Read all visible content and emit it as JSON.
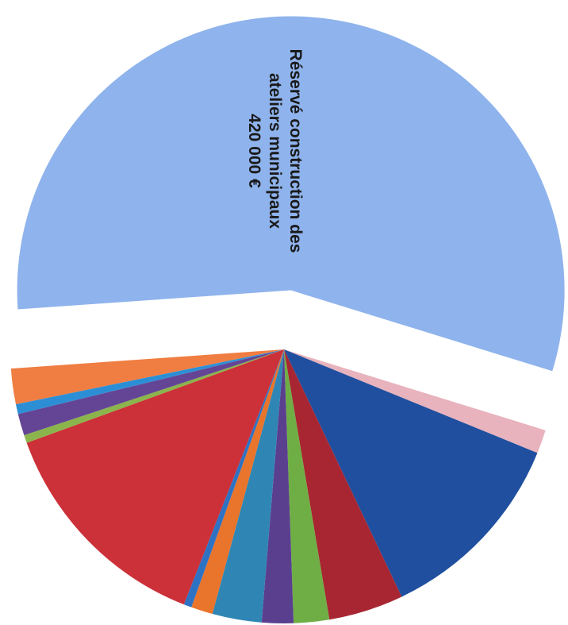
{
  "chart_data": {
    "type": "pie",
    "title": "",
    "slices": [
      {
        "value": 480,
        "color": "#8fb3ec",
        "label_lines": [
          "Réservé construction des",
          "ateliers municipaux",
          "420 000 €"
        ]
      },
      {
        "value": 12,
        "color": "#e8b3bd"
      },
      {
        "value": 101,
        "color": "#1f4f9e"
      },
      {
        "value": 38,
        "color": "#a82632"
      },
      {
        "value": 18,
        "color": "#6fae45"
      },
      {
        "value": 16,
        "color": "#5b3f8f"
      },
      {
        "value": 25,
        "color": "#2f86b4"
      },
      {
        "value": 11,
        "color": "#e9742b"
      },
      {
        "value": 4,
        "color": "#2e72c4"
      },
      {
        "value": 116,
        "color": "#cc3038"
      },
      {
        "value": 4,
        "color": "#8bb44c"
      },
      {
        "value": 11,
        "color": "#644595"
      },
      {
        "value": 5,
        "color": "#2c8fd6"
      },
      {
        "value": 18,
        "color": "#f07d41"
      }
    ]
  }
}
